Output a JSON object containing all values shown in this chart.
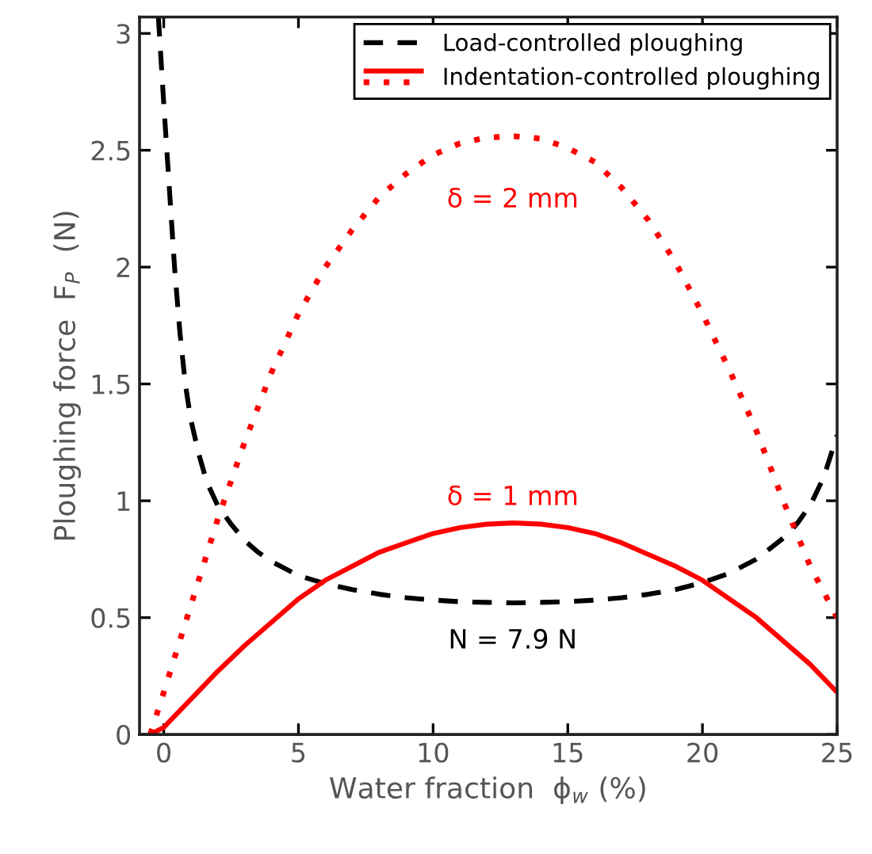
{
  "chart_data": {
    "type": "line",
    "xlabel": "Water fraction  ϕ$_{w}$ (%)",
    "ylabel": "Ploughing force  F$_{P}$  (N)",
    "xlim": [
      -0.9,
      25
    ],
    "ylim": [
      0,
      3.07
    ],
    "xticks": [
      0,
      5,
      10,
      15,
      20,
      25
    ],
    "yticks": [
      0,
      0.5,
      1,
      1.5,
      2,
      2.5,
      3
    ],
    "grid": false,
    "legend": "top right",
    "series": [
      {
        "name": "Load-controlled ploughing",
        "color": "#000000",
        "line_style": "dashed",
        "x": [
          -0.2,
          0,
          0.2,
          0.4,
          0.6,
          0.8,
          1,
          1.3,
          1.6,
          2,
          2.5,
          3,
          3.5,
          4,
          5,
          6,
          7,
          8,
          9,
          10,
          11,
          12,
          13,
          14,
          15,
          16,
          17,
          18,
          19,
          20,
          21,
          22,
          23,
          23.5,
          24,
          24.5,
          25
        ],
        "values": [
          3.07,
          2.7,
          2.35,
          2.0,
          1.72,
          1.5,
          1.35,
          1.2,
          1.08,
          0.98,
          0.9,
          0.83,
          0.78,
          0.74,
          0.68,
          0.645,
          0.62,
          0.6,
          0.585,
          0.575,
          0.568,
          0.565,
          0.563,
          0.565,
          0.568,
          0.575,
          0.585,
          0.6,
          0.62,
          0.65,
          0.69,
          0.75,
          0.84,
          0.9,
          0.98,
          1.1,
          1.28
        ]
      },
      {
        "name": "Indentation-controlled ploughing",
        "color": "#ff0000",
        "line_style": "solid",
        "x": [
          -0.5,
          0,
          1,
          2,
          3,
          4,
          5,
          6,
          7,
          8,
          9,
          10,
          11,
          12,
          13,
          14,
          15,
          16,
          17,
          18,
          19,
          20,
          21,
          22,
          23,
          24,
          25
        ],
        "values": [
          0,
          0.03,
          0.15,
          0.27,
          0.38,
          0.48,
          0.58,
          0.66,
          0.72,
          0.78,
          0.82,
          0.86,
          0.885,
          0.9,
          0.905,
          0.9,
          0.885,
          0.86,
          0.82,
          0.77,
          0.72,
          0.66,
          0.58,
          0.5,
          0.4,
          0.3,
          0.18
        ]
      },
      {
        "color": "#ff0000",
        "line_style": "dotted",
        "x": [
          -0.5,
          0,
          1,
          2,
          3,
          4,
          5,
          6,
          7,
          8,
          9,
          10,
          11,
          12,
          13,
          14,
          15,
          16,
          17,
          18,
          19,
          20,
          21,
          22,
          23,
          24,
          25
        ],
        "values": [
          0,
          0.18,
          0.55,
          0.92,
          1.25,
          1.55,
          1.8,
          2.0,
          2.16,
          2.3,
          2.4,
          2.48,
          2.53,
          2.555,
          2.56,
          2.55,
          2.51,
          2.45,
          2.34,
          2.2,
          2.02,
          1.8,
          1.56,
          1.3,
          1.0,
          0.72,
          0.5
        ]
      }
    ],
    "annotations": [
      "δ = 2 mm",
      "δ = 1 mm",
      "N = 7.9 N"
    ]
  }
}
